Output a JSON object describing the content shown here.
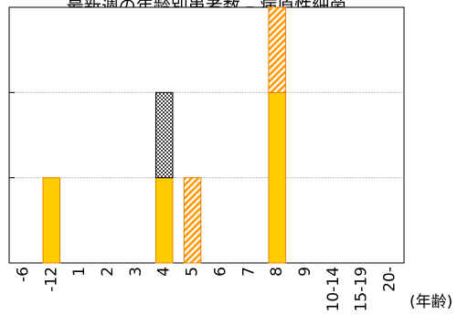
{
  "chart_data": {
    "type": "bar",
    "title": "最新週の年齢別患者数 – 病原性細菌",
    "xlabel": "(年齢)",
    "ylabel": "",
    "categories": [
      "-6",
      "-12",
      "1",
      "2",
      "3",
      "4",
      "5",
      "6",
      "7",
      "8",
      "9",
      "10-14",
      "15-19",
      "20-"
    ],
    "ylim": [
      0,
      3
    ],
    "gridlines": [
      1,
      2
    ],
    "grid": "horizontal dotted",
    "legend": "none",
    "series": [
      {
        "pattern": "solid",
        "color": "#FFCC00",
        "stroke": "#F08000",
        "values": [
          0,
          1,
          0,
          0,
          0,
          1,
          0,
          0,
          0,
          2,
          0,
          0,
          0,
          0
        ]
      },
      {
        "pattern": "diagonal-hatch",
        "color": "#FF9900",
        "stroke": "#F08000",
        "values": [
          0,
          0,
          0,
          0,
          0,
          0,
          1,
          0,
          0,
          1,
          0,
          0,
          0,
          0
        ]
      },
      {
        "pattern": "checker",
        "color": "#444444",
        "stroke": "#000000",
        "values": [
          0,
          0,
          0,
          0,
          0,
          1,
          0,
          0,
          0,
          0,
          0,
          0,
          0,
          0
        ]
      }
    ]
  }
}
